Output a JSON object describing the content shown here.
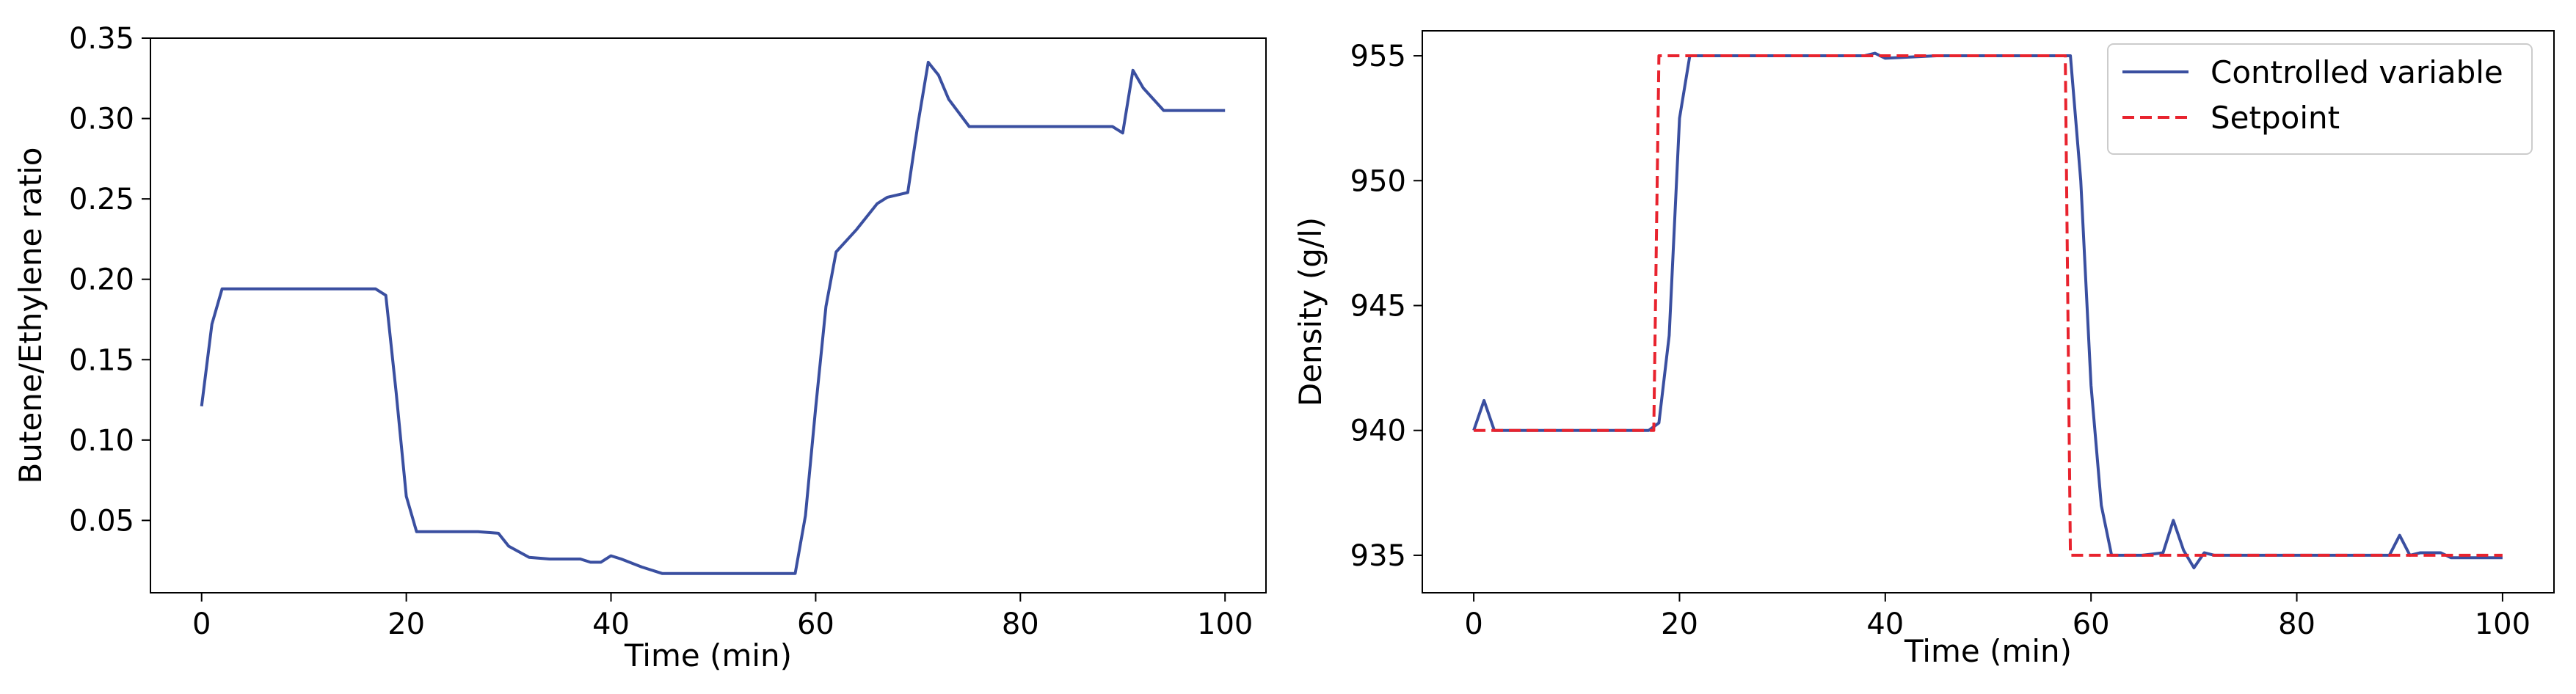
{
  "chart_data": [
    {
      "type": "line",
      "title": "",
      "xlabel": "Time (min)",
      "ylabel": "Butene/Ethylene ratio",
      "xlim": [
        -5,
        104
      ],
      "ylim": [
        0.005,
        0.35
      ],
      "x_ticks": [
        0,
        20,
        40,
        60,
        80,
        100
      ],
      "x_tick_labels": [
        "0",
        "20",
        "40",
        "60",
        "80",
        "100"
      ],
      "y_ticks": [
        0.05,
        0.1,
        0.15,
        0.2,
        0.25,
        0.3,
        0.35
      ],
      "y_tick_labels": [
        "0.05",
        "0.10",
        "0.15",
        "0.20",
        "0.25",
        "0.30",
        "0.35"
      ],
      "grid": false,
      "legend": null,
      "colors": {
        "line": "#3a4fa0"
      },
      "series": [
        {
          "style": "solid",
          "color": "#3a4fa0",
          "x": [
            0,
            1,
            2,
            4,
            6,
            8,
            10,
            12,
            14,
            16,
            17,
            18,
            19,
            20,
            21,
            23,
            25,
            27,
            29,
            30,
            32,
            34,
            36,
            37,
            38,
            39,
            40,
            41,
            43,
            45,
            50,
            55,
            58,
            59,
            60,
            61,
            62,
            64,
            66,
            67,
            69,
            70,
            71,
            72,
            73,
            75,
            80,
            85,
            89,
            90,
            91,
            92,
            94,
            96,
            100
          ],
          "y": [
            0.121,
            0.172,
            0.194,
            0.194,
            0.194,
            0.194,
            0.194,
            0.194,
            0.194,
            0.194,
            0.194,
            0.19,
            0.13,
            0.065,
            0.043,
            0.043,
            0.043,
            0.043,
            0.042,
            0.034,
            0.027,
            0.026,
            0.026,
            0.026,
            0.024,
            0.024,
            0.028,
            0.026,
            0.021,
            0.017,
            0.017,
            0.017,
            0.017,
            0.053,
            0.12,
            0.183,
            0.217,
            0.231,
            0.247,
            0.251,
            0.254,
            0.297,
            0.335,
            0.327,
            0.312,
            0.295,
            0.295,
            0.295,
            0.295,
            0.291,
            0.33,
            0.319,
            0.305,
            0.305,
            0.305
          ]
        }
      ]
    },
    {
      "type": "line",
      "title": "",
      "xlabel": "Time (min)",
      "ylabel": "Density (g/l)",
      "xlim": [
        -5,
        105
      ],
      "ylim": [
        933.5,
        956
      ],
      "x_ticks": [
        0,
        20,
        40,
        60,
        80,
        100
      ],
      "x_tick_labels": [
        "0",
        "20",
        "40",
        "60",
        "80",
        "100"
      ],
      "y_ticks": [
        935,
        940,
        945,
        950,
        955
      ],
      "y_tick_labels": [
        "935",
        "940",
        "945",
        "950",
        "955"
      ],
      "grid": false,
      "legend": "top-right",
      "colors": {
        "controlled": "#3a4fa0",
        "setpoint": "#e8232e"
      },
      "series": [
        {
          "name": "Controlled variable",
          "style": "solid",
          "color": "#3a4fa0",
          "x": [
            0,
            1,
            2,
            5,
            10,
            15,
            17,
            18,
            19,
            20,
            21,
            23,
            25,
            30,
            35,
            38,
            39,
            40,
            45,
            50,
            55,
            58,
            59,
            60,
            61,
            62,
            63,
            65,
            67,
            68,
            69,
            70,
            71,
            72,
            75,
            80,
            85,
            89,
            90,
            91,
            92,
            94,
            95,
            100
          ],
          "y": [
            940,
            941.2,
            940,
            940,
            940,
            940,
            940,
            940.3,
            943.8,
            952.5,
            955,
            955,
            955,
            955,
            955,
            955,
            955.1,
            954.9,
            955,
            955,
            955,
            955,
            950,
            941.8,
            937,
            935,
            935,
            935,
            935.1,
            936.4,
            935.2,
            934.5,
            935.1,
            935,
            935,
            935,
            935,
            935,
            935.8,
            935,
            935.1,
            935.1,
            934.9,
            934.9
          ]
        },
        {
          "name": "Setpoint",
          "style": "dashed",
          "color": "#e8232e",
          "x": [
            0,
            17.5,
            18,
            57.5,
            58,
            100
          ],
          "y": [
            940,
            940,
            955,
            955,
            935,
            935
          ]
        }
      ]
    }
  ]
}
